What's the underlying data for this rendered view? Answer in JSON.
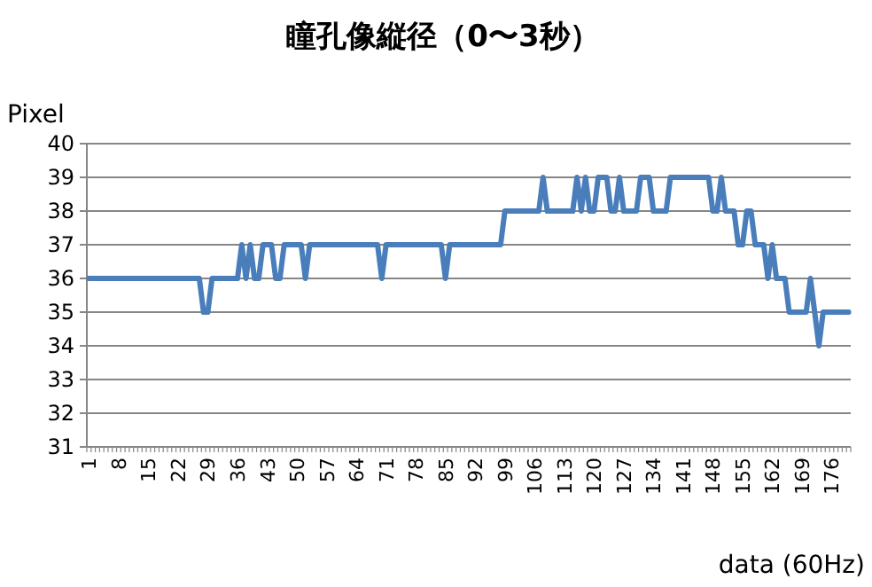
{
  "chart_data": {
    "type": "line",
    "title": "瞳孔像縦径（0〜3秒）",
    "xlabel": "data (60Hz)",
    "ylabel": "Pixel",
    "categories": [
      "1",
      null,
      null,
      null,
      null,
      null,
      null,
      "8",
      null,
      null,
      null,
      null,
      null,
      null,
      "15",
      null,
      null,
      null,
      null,
      null,
      null,
      "22",
      null,
      null,
      null,
      null,
      null,
      null,
      "29",
      null,
      null,
      null,
      null,
      null,
      null,
      "36",
      null,
      null,
      null,
      null,
      null,
      null,
      "43",
      null,
      null,
      null,
      null,
      null,
      null,
      "50",
      null,
      null,
      null,
      null,
      null,
      null,
      "57",
      null,
      null,
      null,
      null,
      null,
      null,
      "64",
      null,
      null,
      null,
      null,
      null,
      null,
      "71",
      null,
      null,
      null,
      null,
      null,
      null,
      "78",
      null,
      null,
      null,
      null,
      null,
      null,
      "85",
      null,
      null,
      null,
      null,
      null,
      null,
      "92",
      null,
      null,
      null,
      null,
      null,
      null,
      "99",
      null,
      null,
      null,
      null,
      null,
      null,
      "106",
      null,
      null,
      null,
      null,
      null,
      null,
      "113",
      null,
      null,
      null,
      null,
      null,
      null,
      "120",
      null,
      null,
      null,
      null,
      null,
      null,
      "127",
      null,
      null,
      null,
      null,
      null,
      null,
      "134",
      null,
      null,
      null,
      null,
      null,
      null,
      "141",
      null,
      null,
      null,
      null,
      null,
      null,
      "148",
      null,
      null,
      null,
      null,
      null,
      null,
      "155",
      null,
      null,
      null,
      null,
      null,
      null,
      "162",
      null,
      null,
      null,
      null,
      null,
      null,
      "169",
      null,
      null,
      null,
      null,
      null,
      null,
      "176",
      null,
      null,
      null,
      null
    ],
    "series": [
      {
        "color": "#4a7ebb",
        "values": [
          36,
          36,
          36,
          36,
          36,
          36,
          36,
          36,
          36,
          36,
          36,
          36,
          36,
          36,
          36,
          36,
          36,
          36,
          36,
          36,
          36,
          36,
          36,
          36,
          36,
          36,
          36,
          35,
          35,
          36,
          36,
          36,
          36,
          36,
          36,
          36,
          37,
          36,
          37,
          36,
          36,
          37,
          37,
          37,
          36,
          36,
          37,
          37,
          37,
          37,
          37,
          36,
          37,
          37,
          37,
          37,
          37,
          37,
          37,
          37,
          37,
          37,
          37,
          37,
          37,
          37,
          37,
          37,
          37,
          36,
          37,
          37,
          37,
          37,
          37,
          37,
          37,
          37,
          37,
          37,
          37,
          37,
          37,
          37,
          36,
          37,
          37,
          37,
          37,
          37,
          37,
          37,
          37,
          37,
          37,
          37,
          37,
          37,
          38,
          38,
          38,
          38,
          38,
          38,
          38,
          38,
          38,
          39,
          38,
          38,
          38,
          38,
          38,
          38,
          38,
          39,
          38,
          39,
          38,
          38,
          39,
          39,
          39,
          38,
          38,
          39,
          38,
          38,
          38,
          38,
          39,
          39,
          39,
          38,
          38,
          38,
          38,
          39,
          39,
          39,
          39,
          39,
          39,
          39,
          39,
          39,
          39,
          38,
          38,
          39,
          38,
          38,
          38,
          37,
          37,
          38,
          38,
          37,
          37,
          37,
          36,
          37,
          36,
          36,
          36,
          35,
          35,
          35,
          35,
          35,
          36,
          35,
          34,
          35,
          35,
          35,
          35,
          35,
          35,
          35
        ]
      }
    ],
    "ylim": [
      31,
      40
    ],
    "yticks": [
      31,
      32,
      33,
      34,
      35,
      36,
      37,
      38,
      39,
      40
    ],
    "grid": "y",
    "line_style": "solid"
  }
}
